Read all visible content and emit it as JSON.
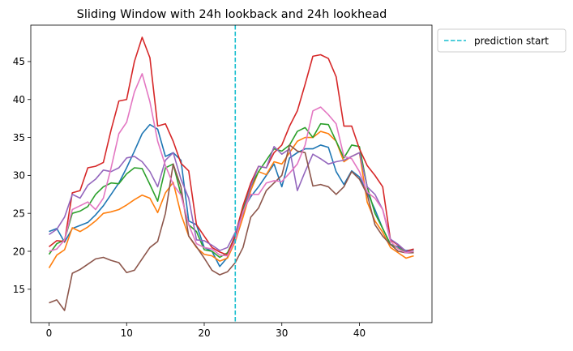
{
  "chart_data": {
    "type": "line",
    "title": "Sliding Window with 24h lookback and 24h lookhead",
    "xlabel": "",
    "ylabel": "",
    "xlim": [
      -2.35,
      49.35
    ],
    "ylim": [
      10.6,
      49.8
    ],
    "xticks": [
      0,
      10,
      20,
      30,
      40
    ],
    "yticks": [
      15,
      20,
      25,
      30,
      35,
      40,
      45
    ],
    "grid": false,
    "legend": {
      "placement": "outside-top-right",
      "entries": [
        "prediction start"
      ]
    },
    "vline": {
      "x": 24,
      "label": "prediction start",
      "color": "#17becf",
      "style": "dashed"
    },
    "x": [
      0,
      1,
      2,
      3,
      4,
      5,
      6,
      7,
      8,
      9,
      10,
      11,
      12,
      13,
      14,
      15,
      16,
      17,
      18,
      19,
      20,
      21,
      22,
      23,
      24,
      25,
      26,
      27,
      28,
      29,
      30,
      31,
      32,
      33,
      34,
      35,
      36,
      37,
      38,
      39,
      40,
      41,
      42,
      43,
      44,
      45,
      46,
      47
    ],
    "series": [
      {
        "color": "#1f77b4",
        "values": [
          22.6,
          23.0,
          21.2,
          23.0,
          23.4,
          23.8,
          24.8,
          26.0,
          27.5,
          29.0,
          31.0,
          33.2,
          35.5,
          36.7,
          36.1,
          32.5,
          33.0,
          32.0,
          24.0,
          23.5,
          20.5,
          20.0,
          18.0,
          19.2,
          21.8,
          25.5,
          27.2,
          28.5,
          30.0,
          31.5,
          28.5,
          32.3,
          33.0,
          33.5,
          33.5,
          34.0,
          33.7,
          30.5,
          28.8,
          30.6,
          29.8,
          27.8,
          25.5,
          23.0,
          20.9,
          20.6,
          20.1,
          20.2
        ]
      },
      {
        "color": "#ff7f0e",
        "values": [
          17.8,
          19.5,
          20.2,
          23.1,
          22.6,
          23.2,
          24.0,
          25.0,
          25.2,
          25.5,
          26.1,
          26.8,
          27.4,
          27.0,
          25.1,
          27.7,
          29.1,
          24.9,
          22.0,
          20.5,
          19.6,
          19.4,
          18.7,
          19.1,
          21.3,
          24.5,
          28.0,
          30.5,
          30.1,
          31.8,
          31.5,
          33.0,
          34.5,
          35.0,
          35.0,
          35.8,
          35.5,
          34.5,
          31.8,
          32.5,
          33.0,
          26.5,
          24.0,
          22.5,
          20.5,
          19.8,
          19.1,
          19.4
        ]
      },
      {
        "color": "#2ca02c",
        "values": [
          19.6,
          21.0,
          21.5,
          25.0,
          25.3,
          25.9,
          27.5,
          28.5,
          29.0,
          28.9,
          30.2,
          31.0,
          30.9,
          28.8,
          26.6,
          31.0,
          31.5,
          27.5,
          23.5,
          22.6,
          20.2,
          20.0,
          19.2,
          19.8,
          22.0,
          25.5,
          28.5,
          30.5,
          32.0,
          33.5,
          33.2,
          34.0,
          35.8,
          36.3,
          35.0,
          36.8,
          36.7,
          34.5,
          32.3,
          34.0,
          33.8,
          28.5,
          25.0,
          23.0,
          20.9,
          20.4,
          19.9,
          20.0
        ]
      },
      {
        "color": "#d62728",
        "values": [
          20.6,
          21.4,
          21.3,
          27.7,
          28.0,
          31.0,
          31.2,
          31.7,
          36.0,
          39.8,
          40.0,
          45.0,
          48.2,
          45.5,
          36.5,
          36.8,
          34.5,
          31.6,
          30.6,
          23.5,
          22.0,
          20.5,
          19.9,
          19.5,
          22.2,
          26.0,
          29.0,
          31.2,
          31.0,
          33.0,
          34.0,
          36.5,
          38.5,
          42.0,
          45.7,
          45.9,
          45.4,
          43.0,
          36.5,
          36.5,
          33.5,
          31.3,
          30.0,
          28.5,
          21.5,
          20.8,
          20.0,
          20.3
        ]
      },
      {
        "color": "#9467bd",
        "values": [
          22.2,
          22.9,
          24.5,
          27.5,
          27.0,
          28.7,
          29.5,
          30.7,
          30.5,
          31.0,
          32.3,
          32.5,
          31.8,
          30.5,
          28.5,
          32.0,
          33.0,
          29.5,
          27.0,
          21.5,
          21.4,
          20.8,
          20.1,
          20.5,
          22.5,
          25.0,
          28.5,
          31.2,
          31.0,
          33.8,
          32.8,
          33.5,
          28.0,
          30.5,
          32.8,
          32.2,
          31.5,
          31.8,
          32.0,
          32.5,
          33.0,
          28.5,
          27.5,
          25.5,
          21.6,
          20.9,
          20.0,
          19.9
        ]
      },
      {
        "color": "#8c564b",
        "values": [
          13.2,
          13.6,
          12.2,
          17.1,
          17.6,
          18.3,
          19.0,
          19.2,
          18.8,
          18.5,
          17.2,
          17.5,
          19.0,
          20.5,
          21.3,
          25.0,
          31.5,
          28.5,
          22.0,
          20.6,
          19.1,
          17.5,
          16.9,
          17.3,
          18.5,
          20.5,
          24.5,
          25.7,
          28.0,
          29.0,
          30.0,
          34.0,
          33.2,
          33.0,
          28.6,
          28.8,
          28.5,
          27.5,
          28.5,
          30.5,
          29.5,
          27.5,
          23.5,
          22.0,
          20.9,
          20.0,
          19.8,
          19.8
        ]
      },
      {
        "color": "#e377c2",
        "values": [
          20.0,
          20.3,
          21.5,
          25.5,
          26.0,
          26.5,
          25.5,
          27.0,
          31.0,
          35.5,
          37.0,
          41.0,
          43.4,
          39.7,
          34.5,
          31.3,
          28.8,
          27.4,
          23.5,
          21.0,
          20.5,
          20.3,
          19.5,
          19.4,
          21.5,
          25.2,
          27.5,
          27.5,
          29.0,
          29.3,
          29.2,
          30.3,
          31.5,
          34.0,
          38.5,
          39.0,
          38.0,
          36.8,
          32.5,
          32.2,
          30.5,
          27.8,
          27.0,
          25.5,
          21.3,
          20.3,
          19.8,
          20.0
        ]
      }
    ]
  }
}
